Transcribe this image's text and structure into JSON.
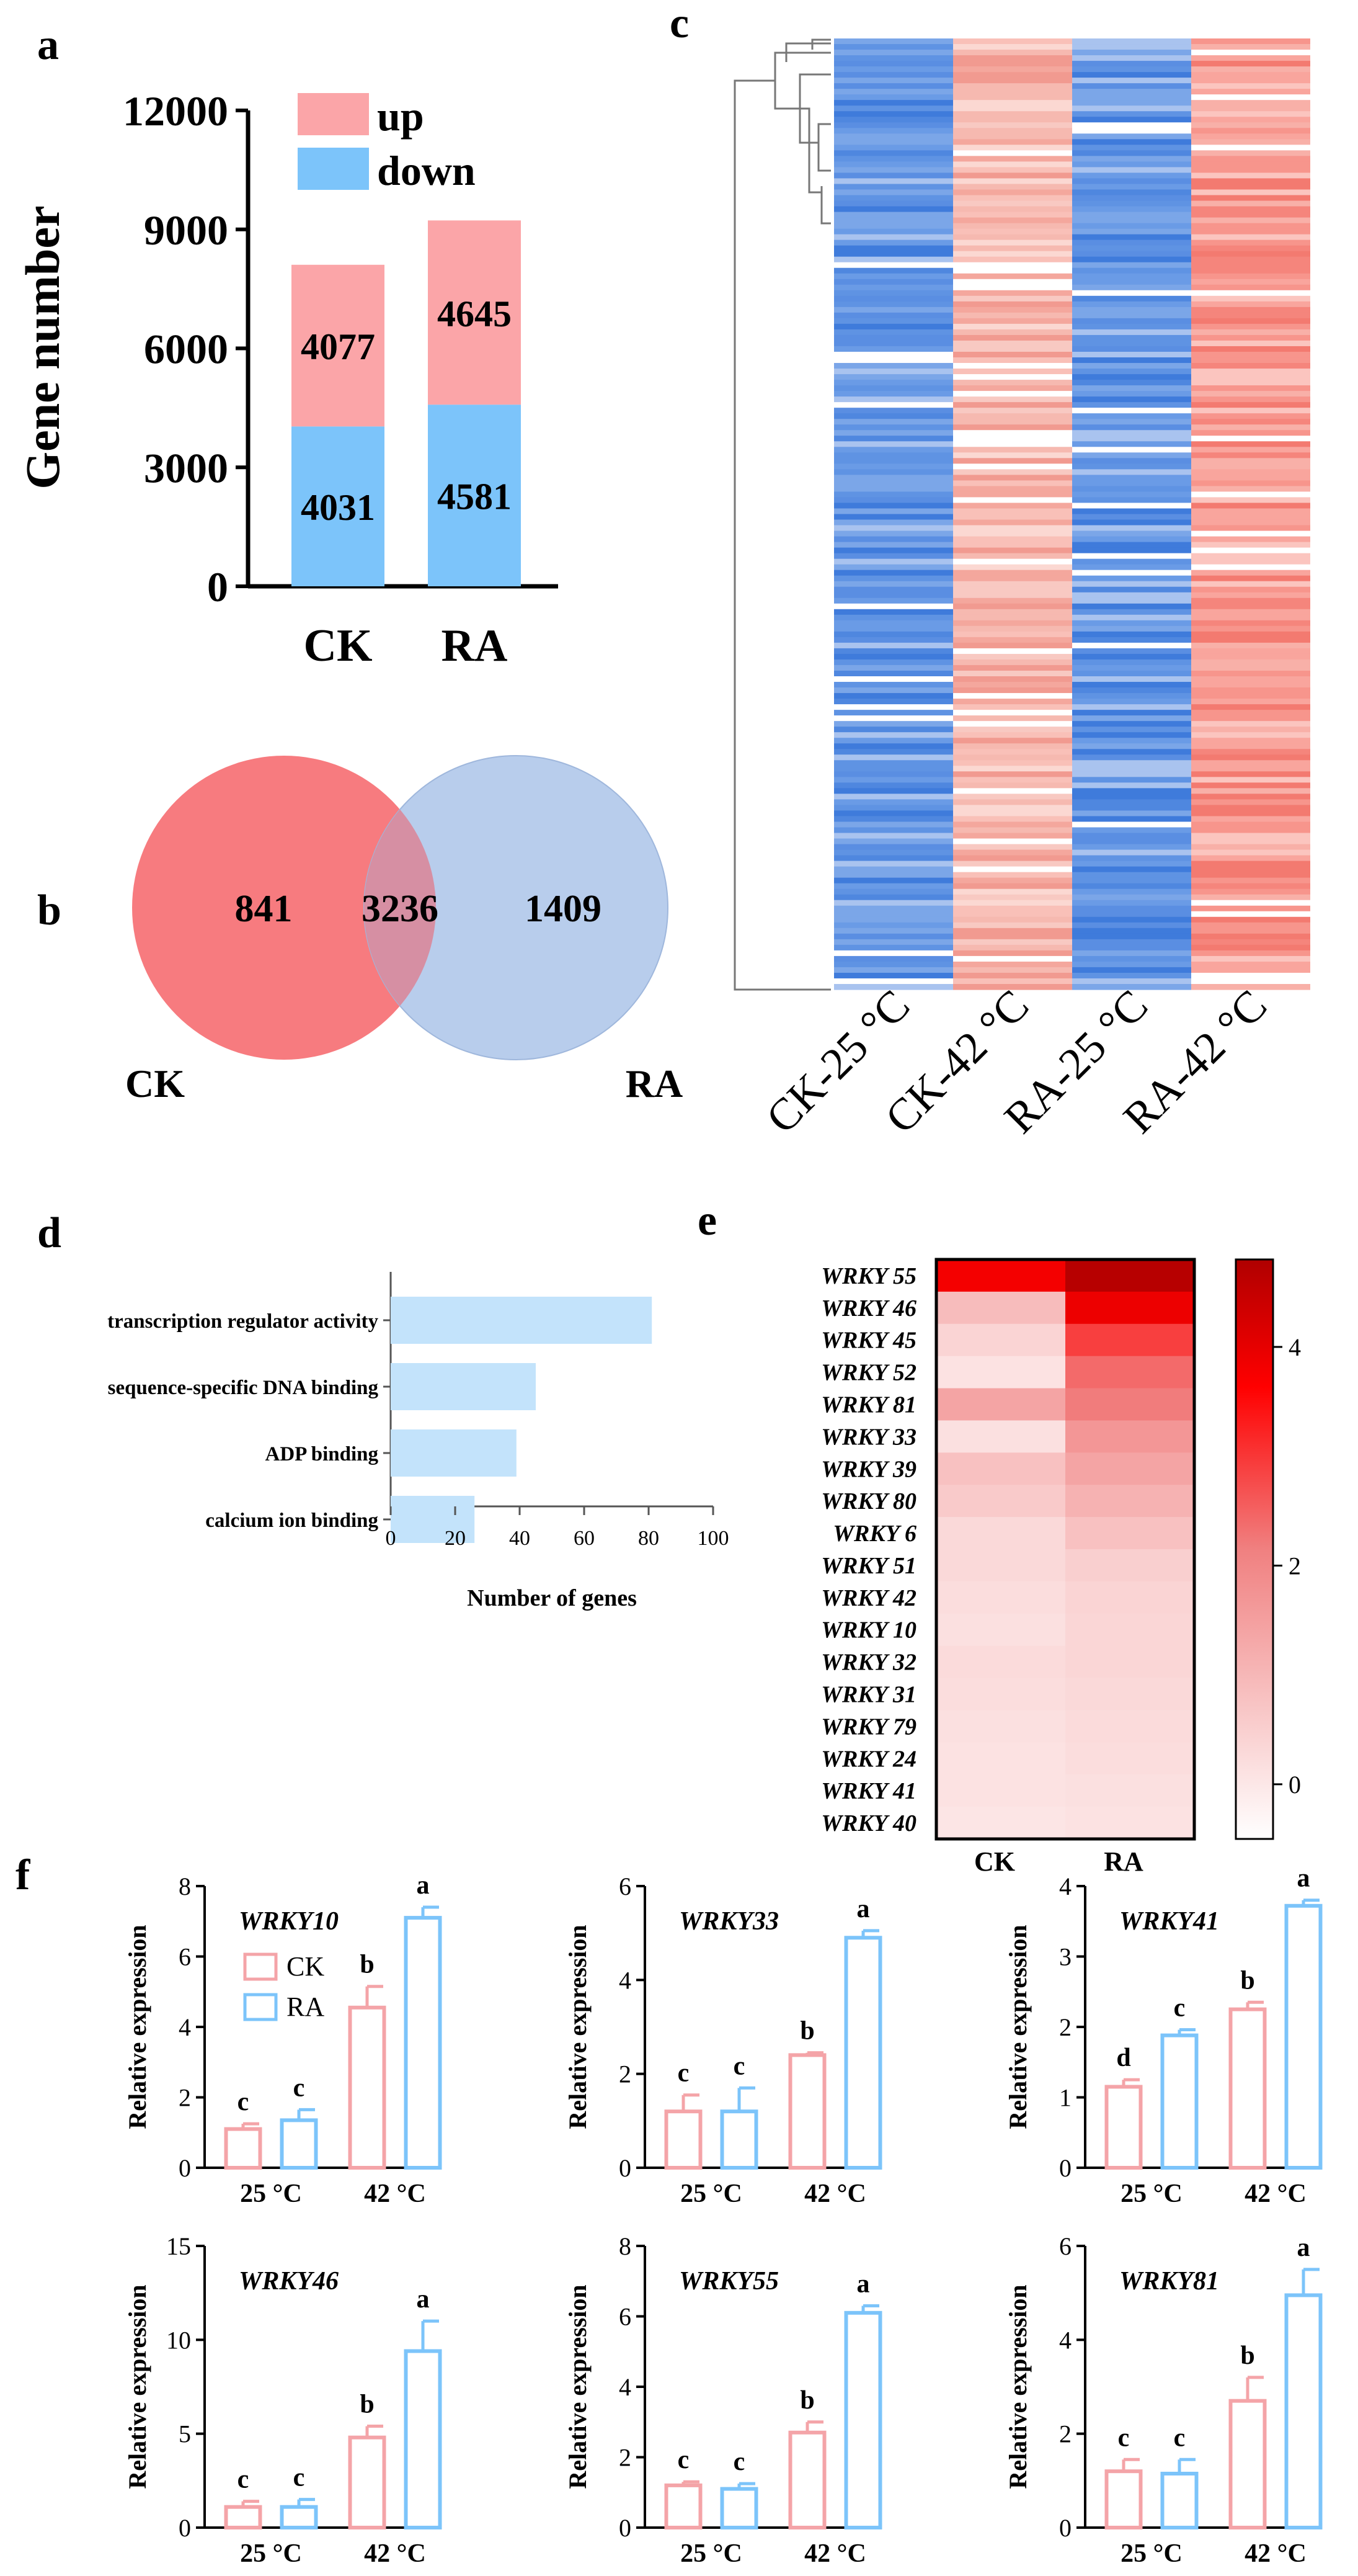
{
  "panel_labels": {
    "a": "a",
    "b": "b",
    "c": "c",
    "d": "d",
    "e": "e",
    "f": "f"
  },
  "chart_data": [
    {
      "id": "a",
      "type": "bar",
      "stacked": true,
      "ylabel": "Gene number",
      "categories": [
        "CK",
        "RA"
      ],
      "ylim": [
        0,
        12000
      ],
      "yticks": [
        "0",
        "3000",
        "6000",
        "9000",
        "12000"
      ],
      "series": [
        {
          "name": "down",
          "values": [
            4031,
            4581
          ],
          "color": "#7cc4fa",
          "labels": [
            "4031",
            "4581"
          ]
        },
        {
          "name": "up",
          "values": [
            4077,
            4645
          ],
          "color": "#fba5a8",
          "labels": [
            "4077",
            "4645"
          ]
        }
      ]
    },
    {
      "id": "b",
      "type": "venn",
      "sets": [
        {
          "name": "CK",
          "only": "841",
          "color": "#f77b7f"
        },
        {
          "name": "RA",
          "only": "1409",
          "color": "#b8cdec"
        }
      ],
      "overlap": "3236"
    },
    {
      "id": "c",
      "type": "heatmap",
      "columns": [
        "CK-25 °C",
        "CK-42 °C",
        "RA-25 °C",
        "RA-42 °C"
      ],
      "column_colors": [
        "#5f93e3",
        "#f6b9b0",
        "#4f85e0",
        "#f7958c"
      ],
      "rows": 170,
      "dendrogram": "left"
    },
    {
      "id": "d",
      "type": "bar",
      "orientation": "horizontal",
      "xlabel": "Number of genes",
      "categories": [
        "transcription regulator activity",
        "sequence-specific DNA binding",
        "ADP binding",
        "calcium ion binding"
      ],
      "values": [
        81,
        45,
        39,
        26
      ],
      "xlim": [
        0,
        100
      ],
      "xticks": [
        "0",
        "20",
        "40",
        "60",
        "80",
        "100"
      ],
      "color": "#c3e3fb"
    },
    {
      "id": "e",
      "type": "heatmap",
      "rows": [
        "WRKY 55",
        "WRKY 46",
        "WRKY 45",
        "WRKY 52",
        "WRKY 81",
        "WRKY 33",
        "WRKY 39",
        "WRKY 80",
        "WRKY 6",
        "WRKY 51",
        "WRKY 42",
        "WRKY 10",
        "WRKY 32",
        "WRKY 31",
        "WRKY 79",
        "WRKY 24",
        "WRKY 41",
        "WRKY 40"
      ],
      "columns": [
        "CK",
        "RA"
      ],
      "values": [
        [
          3.8,
          4.7
        ],
        [
          0.9,
          3.9
        ],
        [
          0.4,
          2.9
        ],
        [
          0.1,
          2.4
        ],
        [
          1.4,
          2.2
        ],
        [
          0.15,
          1.7
        ],
        [
          0.8,
          1.4
        ],
        [
          0.6,
          1.1
        ],
        [
          0.3,
          0.8
        ],
        [
          0.3,
          0.5
        ],
        [
          0.2,
          0.4
        ],
        [
          0.15,
          0.35
        ],
        [
          0.25,
          0.35
        ],
        [
          0.2,
          0.3
        ],
        [
          0.15,
          0.25
        ],
        [
          0.1,
          0.2
        ],
        [
          0.1,
          0.15
        ],
        [
          0.05,
          0.1
        ]
      ],
      "scale_min": -0.5,
      "scale_max": 4.8,
      "colorbar_ticks": [
        "0",
        "2",
        "4"
      ],
      "colorbar_values": [
        0,
        2,
        4
      ]
    },
    {
      "id": "f",
      "type": "bar",
      "group": "qRT-PCR",
      "ylabel": "Relative expression",
      "xcategories": [
        "25 °C",
        "42 °C"
      ],
      "legend": [
        {
          "name": "CK",
          "color": "#f4a4a8"
        },
        {
          "name": "RA",
          "color": "#7cc4fa"
        }
      ],
      "panels": [
        {
          "gene": "WRKY10",
          "ymax": 8,
          "yticks": [
            "0",
            "2",
            "4",
            "6",
            "8"
          ],
          "values": [
            1.1,
            1.35,
            4.55,
            7.1
          ],
          "errors": [
            0.15,
            0.3,
            0.6,
            0.3
          ],
          "letters": [
            "c",
            "c",
            "b",
            "a"
          ],
          "legend": true
        },
        {
          "gene": "WRKY33",
          "ymax": 6,
          "yticks": [
            "0",
            "2",
            "4",
            "6"
          ],
          "values": [
            1.2,
            1.2,
            2.4,
            4.9
          ],
          "errors": [
            0.35,
            0.5,
            0.05,
            0.15
          ],
          "letters": [
            "c",
            "c",
            "b",
            "a"
          ],
          "legend": false
        },
        {
          "gene": "WRKY41",
          "ymax": 4,
          "yticks": [
            "0",
            "1",
            "2",
            "3",
            "4"
          ],
          "values": [
            1.15,
            1.88,
            2.25,
            3.72
          ],
          "errors": [
            0.1,
            0.08,
            0.1,
            0.08
          ],
          "letters": [
            "d",
            "c",
            "b",
            "a"
          ],
          "legend": false
        },
        {
          "gene": "WRKY46",
          "ymax": 15,
          "yticks": [
            "0",
            "5",
            "10",
            "15"
          ],
          "values": [
            1.1,
            1.1,
            4.8,
            9.4
          ],
          "errors": [
            0.3,
            0.4,
            0.6,
            1.6
          ],
          "letters": [
            "c",
            "c",
            "b",
            "a"
          ],
          "legend": false
        },
        {
          "gene": "WRKY55",
          "ymax": 8,
          "yticks": [
            "0",
            "2",
            "4",
            "6",
            "8"
          ],
          "values": [
            1.2,
            1.1,
            2.7,
            6.1
          ],
          "errors": [
            0.1,
            0.15,
            0.3,
            0.2
          ],
          "letters": [
            "c",
            "c",
            "b",
            "a"
          ],
          "legend": false
        },
        {
          "gene": "WRKY81",
          "ymax": 6,
          "yticks": [
            "0",
            "2",
            "4",
            "6"
          ],
          "values": [
            1.2,
            1.15,
            2.7,
            4.95
          ],
          "errors": [
            0.25,
            0.3,
            0.5,
            0.55
          ],
          "letters": [
            "c",
            "c",
            "b",
            "a"
          ],
          "legend": false
        }
      ]
    }
  ]
}
